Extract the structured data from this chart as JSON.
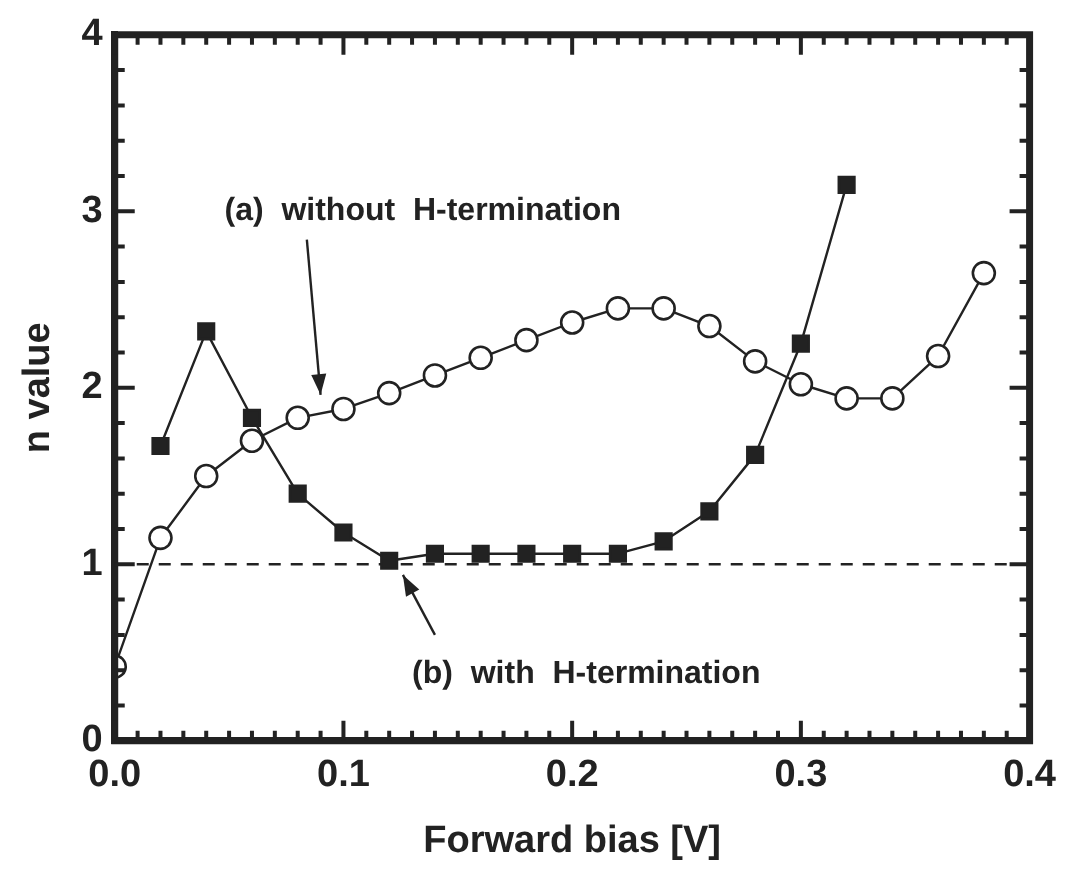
{
  "chart_data": {
    "type": "line",
    "xlabel": "Forward bias [V]",
    "ylabel": "n value",
    "xlim": [
      0,
      0.4
    ],
    "ylim": [
      0,
      4
    ],
    "xticks": [
      {
        "value": 0,
        "label": "0.0"
      },
      {
        "value": 0.01,
        "label": null
      },
      {
        "value": 0.02,
        "label": null
      },
      {
        "value": 0.03,
        "label": null
      },
      {
        "value": 0.04,
        "label": null
      },
      {
        "value": 0.05,
        "label": null
      },
      {
        "value": 0.06,
        "label": null
      },
      {
        "value": 0.07,
        "label": null
      },
      {
        "value": 0.08,
        "label": null
      },
      {
        "value": 0.09,
        "label": null
      },
      {
        "value": 0.1,
        "label": "0.1"
      },
      {
        "value": 0.11,
        "label": null
      },
      {
        "value": 0.12,
        "label": null
      },
      {
        "value": 0.13,
        "label": null
      },
      {
        "value": 0.14,
        "label": null
      },
      {
        "value": 0.15,
        "label": null
      },
      {
        "value": 0.16,
        "label": null
      },
      {
        "value": 0.17,
        "label": null
      },
      {
        "value": 0.18,
        "label": null
      },
      {
        "value": 0.19,
        "label": null
      },
      {
        "value": 0.2,
        "label": "0.2"
      },
      {
        "value": 0.21,
        "label": null
      },
      {
        "value": 0.22,
        "label": null
      },
      {
        "value": 0.23,
        "label": null
      },
      {
        "value": 0.24,
        "label": null
      },
      {
        "value": 0.25,
        "label": null
      },
      {
        "value": 0.26,
        "label": null
      },
      {
        "value": 0.27,
        "label": null
      },
      {
        "value": 0.28,
        "label": null
      },
      {
        "value": 0.29,
        "label": null
      },
      {
        "value": 0.3,
        "label": "0.3"
      },
      {
        "value": 0.31,
        "label": null
      },
      {
        "value": 0.32,
        "label": null
      },
      {
        "value": 0.33,
        "label": null
      },
      {
        "value": 0.34,
        "label": null
      },
      {
        "value": 0.35,
        "label": null
      },
      {
        "value": 0.36,
        "label": null
      },
      {
        "value": 0.37,
        "label": null
      },
      {
        "value": 0.38,
        "label": null
      },
      {
        "value": 0.39,
        "label": null
      },
      {
        "value": 0.4,
        "label": "0.4"
      }
    ],
    "yticks": [
      0,
      {
        "value": 0.2,
        "label": null
      },
      {
        "value": 0.4,
        "label": null
      },
      {
        "value": 0.6,
        "label": null
      },
      {
        "value": 0.8,
        "label": null
      },
      1,
      {
        "value": 1.2,
        "label": null
      },
      {
        "value": 1.4,
        "label": null
      },
      {
        "value": 1.6,
        "label": null
      },
      {
        "value": 1.8,
        "label": null
      },
      2,
      {
        "value": 2.2,
        "label": null
      },
      {
        "value": 2.4,
        "label": null
      },
      {
        "value": 2.6,
        "label": null
      },
      {
        "value": 2.8,
        "label": null
      },
      3,
      {
        "value": 3.2,
        "label": null
      },
      {
        "value": 3.4,
        "label": null
      },
      {
        "value": 3.6,
        "label": null
      },
      {
        "value": 3.8,
        "label": null
      },
      4
    ],
    "grid": false,
    "legend": false,
    "line_style": "solid",
    "series": [
      {
        "color": "#222222",
        "marker": "circle",
        "x": [
          0,
          0.02,
          0.04,
          0.06,
          0.08,
          0.1,
          0.12,
          0.14,
          0.16,
          0.18,
          0.2,
          0.22,
          0.24,
          0.26,
          0.28,
          0.3,
          0.32,
          0.34,
          0.36,
          0.38
        ],
        "values": [
          0.42,
          1.15,
          1.5,
          1.7,
          1.83,
          1.88,
          1.97,
          2.07,
          2.17,
          2.27,
          2.37,
          2.45,
          2.45,
          2.35,
          2.15,
          2.02,
          1.94,
          1.94,
          2.18,
          2.65
        ]
      },
      {
        "color": "#222222",
        "marker": "square",
        "x": [
          0.02,
          0.04,
          0.06,
          0.08,
          0.1,
          0.12,
          0.14,
          0.16,
          0.18,
          0.2,
          0.22,
          0.24,
          0.26,
          0.28,
          0.3,
          0.32
        ],
        "values": [
          1.67,
          2.32,
          1.83,
          1.4,
          1.18,
          1.02,
          1.06,
          1.06,
          1.06,
          1.06,
          1.06,
          1.13,
          1.3,
          1.62,
          2.25,
          3.15
        ]
      }
    ],
    "ref_lines": [
      {
        "axis": "y",
        "value": 1,
        "color": "#222222",
        "line_style": "dashed"
      }
    ],
    "annotations": [
      "(a)  without  H-termination",
      "(b)  with  H-termination"
    ]
  }
}
